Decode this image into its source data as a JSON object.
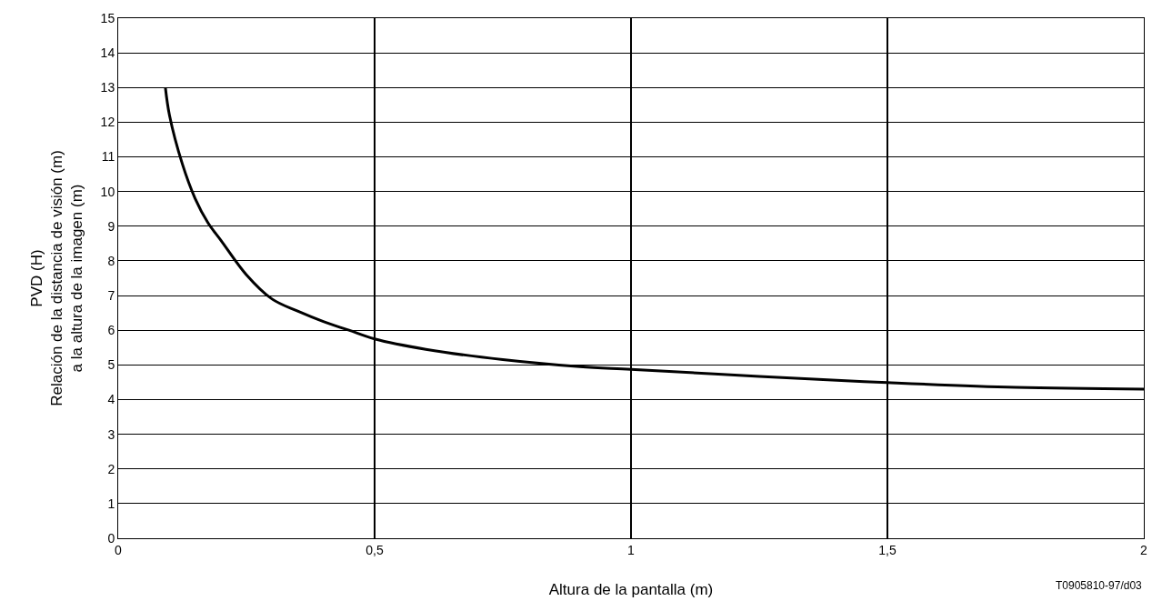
{
  "chart_data": {
    "type": "line",
    "xlabel": "Altura de la pantalla (m)",
    "ylabel": "PVD (H)\nRelación de la distancia de visión (m)\na la altura de la imagen (m)",
    "annotations": [
      "T0905810-97/d03"
    ],
    "x": [
      0.092,
      0.1,
      0.125,
      0.15,
      0.175,
      0.2,
      0.25,
      0.3,
      0.35,
      0.4,
      0.45,
      0.5,
      0.6,
      0.75,
      0.9,
      1.0,
      1.25,
      1.5,
      1.75,
      2.0
    ],
    "series": [
      {
        "color": "#000000",
        "values": [
          13.0,
          12.2,
          10.8,
          9.8,
          9.1,
          8.6,
          7.6,
          6.9,
          6.55,
          6.25,
          6.0,
          5.75,
          5.45,
          5.15,
          4.95,
          4.87,
          4.67,
          4.49,
          4.35,
          4.3
        ]
      }
    ],
    "xlim": [
      0,
      2
    ],
    "xticks": [
      0,
      {
        "value": 0.5,
        "label": "0,5"
      },
      1,
      {
        "value": 1.5,
        "label": "1,5"
      },
      2
    ],
    "ylim": [
      0,
      15
    ],
    "yticks": [
      0,
      1,
      2,
      3,
      4,
      5,
      6,
      7,
      8,
      9,
      10,
      11,
      12,
      13,
      14,
      15
    ],
    "grid": true,
    "marker": "none",
    "line_style": "solid"
  }
}
